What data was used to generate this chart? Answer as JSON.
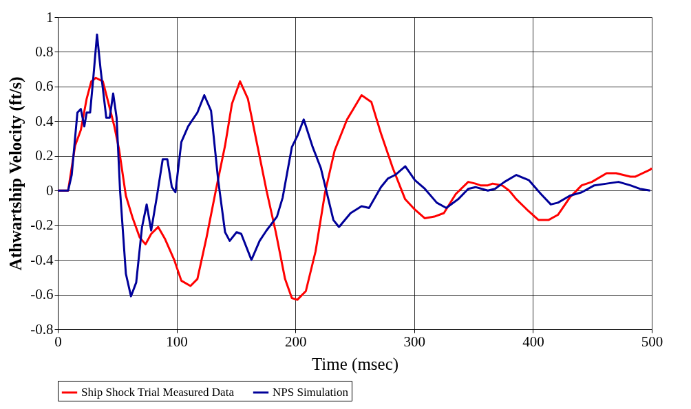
{
  "chart_data": {
    "type": "line",
    "xlabel": "Time (msec)",
    "ylabel": "Athwartship Velocity (ft/s)",
    "xlim": [
      0,
      500
    ],
    "xticks": [
      0,
      100,
      200,
      300,
      400,
      500
    ],
    "ylim": [
      -0.8,
      1
    ],
    "yticks": [
      -0.8,
      -0.6,
      -0.4,
      -0.2,
      0,
      0.2,
      0.4,
      0.6,
      0.8,
      1
    ],
    "grid": true,
    "legend": "bottom",
    "line_style": "solid",
    "marker": "none",
    "series": [
      {
        "name": "Ship Shock Trial Measured Data",
        "color": "#ff0000",
        "x": [
          0,
          8.7,
          14.6,
          19.4,
          24.3,
          28.2,
          32,
          37.9,
          41.7,
          47.6,
          51.5,
          57.3,
          63.1,
          68.9,
          73.8,
          78.6,
          84.5,
          90.3,
          98,
          104,
          111.7,
          117.5,
          125.2,
          133,
          140.8,
          146.6,
          153.4,
          160,
          168,
          175.7,
          183.5,
          191.3,
          197,
          201.6,
          208.8,
          217,
          225,
          233,
          243.5,
          255.7,
          264,
          272,
          282,
          292.4,
          300.6,
          309,
          317,
          325,
          335,
          345.5,
          351.6,
          355.7,
          362,
          366,
          374,
          380,
          386,
          396.5,
          404.7,
          413,
          421,
          431,
          441,
          449.6,
          462,
          470,
          482,
          486,
          498.6,
          500
        ],
        "values": [
          0,
          0,
          0.26,
          0.35,
          0.53,
          0.63,
          0.65,
          0.63,
          0.53,
          0.37,
          0.24,
          -0.03,
          -0.16,
          -0.27,
          -0.31,
          -0.25,
          -0.21,
          -0.28,
          -0.4,
          -0.52,
          -0.55,
          -0.51,
          -0.27,
          0,
          0.26,
          0.5,
          0.63,
          0.53,
          0.26,
          0,
          -0.24,
          -0.51,
          -0.62,
          -0.63,
          -0.58,
          -0.35,
          -0.01,
          0.23,
          0.41,
          0.55,
          0.51,
          0.33,
          0.13,
          -0.05,
          -0.11,
          -0.16,
          -0.15,
          -0.13,
          -0.02,
          0.05,
          0.04,
          0.03,
          0.03,
          0.04,
          0.03,
          0,
          -0.05,
          -0.12,
          -0.17,
          -0.17,
          -0.14,
          -0.04,
          0.03,
          0.05,
          0.1,
          0.1,
          0.08,
          0.08,
          0.12,
          0.13
        ]
      },
      {
        "name": "NPS Simulation",
        "color": "#000099",
        "x": [
          0,
          8.7,
          11.7,
          16.5,
          19.4,
          22.3,
          24.3,
          27.2,
          30,
          33,
          36,
          40.8,
          43.7,
          46.6,
          49.5,
          52.4,
          57.3,
          61.6,
          66,
          70.9,
          74.8,
          78.6,
          83.5,
          88.3,
          92.2,
          96,
          99,
          104,
          109.7,
          117.5,
          123.3,
          129,
          135,
          140.8,
          144.7,
          150.5,
          154.4,
          163,
          169.9,
          175.7,
          184.5,
          189.3,
          197,
          202,
          207,
          214.6,
          221.4,
          232,
          236.7,
          246.5,
          255.7,
          262,
          272,
          278,
          284,
          292.5,
          300.6,
          309,
          319,
          327,
          337,
          345.5,
          351.6,
          362,
          368,
          376,
          386,
          396.5,
          406.7,
          415,
          421,
          431,
          441,
          451.6,
          462,
          472,
          482,
          490,
          498.6
        ],
        "values": [
          0,
          0,
          0.09,
          0.45,
          0.47,
          0.37,
          0.45,
          0.45,
          0.66,
          0.9,
          0.7,
          0.42,
          0.42,
          0.56,
          0.42,
          0,
          -0.48,
          -0.61,
          -0.53,
          -0.21,
          -0.08,
          -0.23,
          -0.03,
          0.18,
          0.18,
          0.02,
          -0.01,
          0.28,
          0.37,
          0.45,
          0.55,
          0.46,
          0.06,
          -0.24,
          -0.29,
          -0.24,
          -0.25,
          -0.4,
          -0.29,
          -0.23,
          -0.15,
          -0.04,
          0.25,
          0.32,
          0.41,
          0.25,
          0.13,
          -0.17,
          -0.21,
          -0.13,
          -0.09,
          -0.1,
          0.02,
          0.07,
          0.09,
          0.14,
          0.06,
          0.01,
          -0.07,
          -0.1,
          -0.05,
          0.01,
          0.02,
          0,
          0.01,
          0.05,
          0.09,
          0.06,
          -0.02,
          -0.08,
          -0.07,
          -0.03,
          -0.01,
          0.03,
          0.04,
          0.05,
          0.03,
          0.01,
          0
        ]
      }
    ]
  }
}
